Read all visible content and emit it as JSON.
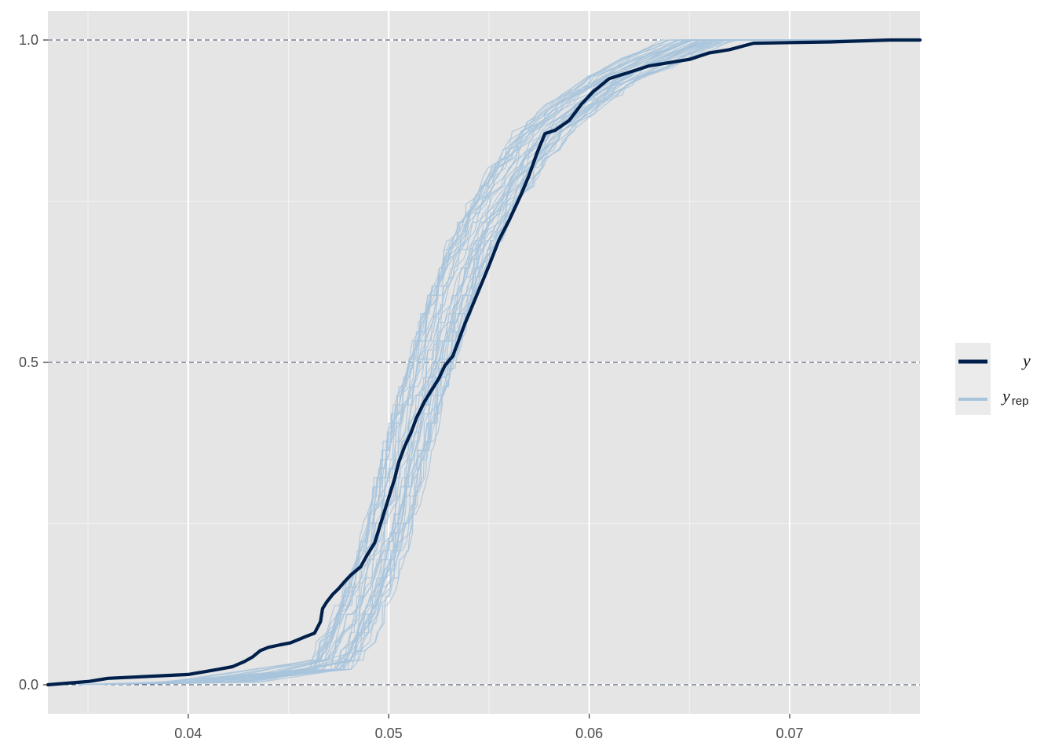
{
  "chart_data": {
    "type": "line",
    "title": "",
    "xlabel": "",
    "ylabel": "",
    "xlim": [
      0.033,
      0.0765
    ],
    "ylim": [
      -0.045,
      1.045
    ],
    "x_ticks": [
      0.04,
      0.05,
      0.06,
      0.07
    ],
    "x_tick_labels": [
      "0.04",
      "0.05",
      "0.06",
      "0.07"
    ],
    "y_ticks": [
      0.0,
      0.5,
      1.0
    ],
    "y_tick_labels": [
      "0.0",
      "0.5",
      "1.0"
    ],
    "reference_lines_y": [
      0.0,
      0.5,
      1.0
    ],
    "legend": {
      "position": "right",
      "entries": [
        {
          "key": "y",
          "label": "y",
          "subscript": "",
          "color": "#011f4b"
        },
        {
          "key": "yrep",
          "label": "y",
          "subscript": "rep",
          "color": "#a8c4dc"
        }
      ]
    },
    "series": [
      {
        "name": "y",
        "color": "#011f4b",
        "x": [
          0.033,
          0.035,
          0.036,
          0.04,
          0.0415,
          0.0422,
          0.0428,
          0.0432,
          0.0436,
          0.044,
          0.0446,
          0.0451,
          0.0458,
          0.0463,
          0.0466,
          0.0467,
          0.0469,
          0.0472,
          0.0475,
          0.0478,
          0.0481,
          0.0486,
          0.0489,
          0.0493,
          0.0497,
          0.05,
          0.0503,
          0.0505,
          0.0508,
          0.0511,
          0.0514,
          0.0518,
          0.0521,
          0.0525,
          0.0528,
          0.0532,
          0.0535,
          0.0538,
          0.0542,
          0.0546,
          0.055,
          0.0555,
          0.056,
          0.0566,
          0.057,
          0.0574,
          0.0578,
          0.0583,
          0.059,
          0.0596,
          0.0602,
          0.061,
          0.062,
          0.063,
          0.064,
          0.065,
          0.066,
          0.067,
          0.0682,
          0.07,
          0.072,
          0.075,
          0.0765
        ],
        "y": [
          0.0,
          0.005,
          0.01,
          0.016,
          0.024,
          0.028,
          0.036,
          0.043,
          0.053,
          0.058,
          0.062,
          0.065,
          0.074,
          0.08,
          0.098,
          0.118,
          0.128,
          0.14,
          0.149,
          0.16,
          0.17,
          0.183,
          0.2,
          0.22,
          0.26,
          0.29,
          0.32,
          0.345,
          0.37,
          0.39,
          0.415,
          0.44,
          0.455,
          0.475,
          0.495,
          0.51,
          0.535,
          0.56,
          0.59,
          0.62,
          0.65,
          0.69,
          0.72,
          0.76,
          0.79,
          0.825,
          0.855,
          0.86,
          0.875,
          0.9,
          0.92,
          0.94,
          0.95,
          0.96,
          0.965,
          0.97,
          0.98,
          0.985,
          0.995,
          0.996,
          0.997,
          1.0,
          1.0
        ]
      }
    ],
    "replicates": {
      "name": "yrep",
      "color": "#a8c4dc",
      "count": 40,
      "median_offset": [
        0.0472,
        0.0484,
        0.0492,
        0.05,
        0.0508,
        0.0516,
        0.0524,
        0.0532,
        0.0542,
        0.0552,
        0.0564,
        0.0578,
        0.0594,
        0.0612,
        0.0632,
        0.0655
      ],
      "median_y": [
        0.03,
        0.1,
        0.16,
        0.24,
        0.34,
        0.44,
        0.52,
        0.6,
        0.68,
        0.74,
        0.8,
        0.86,
        0.9,
        0.94,
        0.97,
        1.0
      ],
      "x_start": 0.0345,
      "x_end": 0.0765
    }
  }
}
